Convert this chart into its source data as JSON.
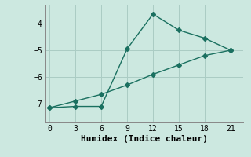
{
  "xlabel": "Humidex (Indice chaleur)",
  "bg_color": "#cce8e0",
  "line_color": "#1a7060",
  "line1_x": [
    0,
    3,
    6,
    9,
    12,
    15,
    18,
    21
  ],
  "line1_y": [
    -7.15,
    -7.1,
    -7.1,
    -4.95,
    -3.65,
    -4.25,
    -4.55,
    -5.0
  ],
  "line2_x": [
    0,
    3,
    6,
    9,
    12,
    15,
    18,
    21
  ],
  "line2_y": [
    -7.15,
    -6.9,
    -6.65,
    -6.3,
    -5.9,
    -5.55,
    -5.2,
    -5.0
  ],
  "xlim": [
    -0.5,
    22.5
  ],
  "ylim": [
    -7.7,
    -3.3
  ],
  "xticks": [
    0,
    3,
    6,
    9,
    12,
    15,
    18,
    21
  ],
  "yticks": [
    -7,
    -6,
    -5,
    -4
  ],
  "grid_color": "#aaccc4",
  "marker": "D",
  "markersize": 3,
  "linewidth": 1.0,
  "tick_fontsize": 7,
  "label_fontsize": 8
}
